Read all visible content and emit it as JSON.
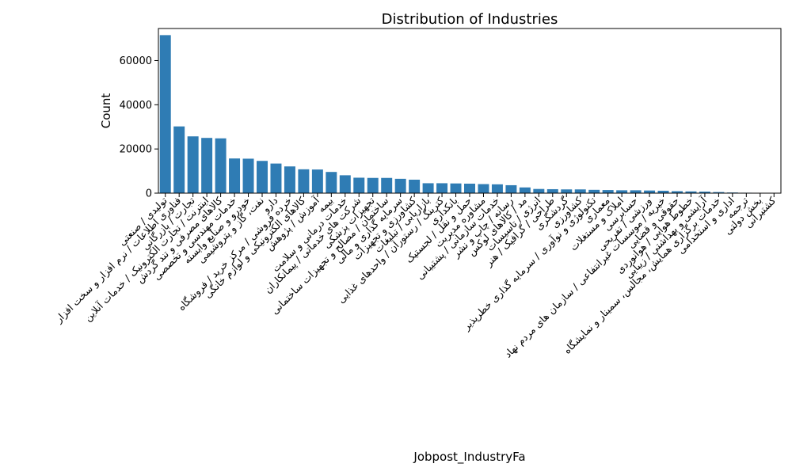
{
  "chart_data": {
    "type": "bar",
    "title": "Distribution of Industries",
    "xlabel": "Jobpost_IndustryFa",
    "ylabel": "Count",
    "ylim": [
      0,
      74500
    ],
    "yticks": [
      0,
      20000,
      40000,
      60000
    ],
    "grid": false,
    "bar_color": "#2f7cb4",
    "categories": [
      "تولیدی / صنعتی",
      "فناوری اطلاعات / نرم افزار و سخت افزار",
      "تجارت / بازرگانی",
      "اینترنت / تجارت الکترونیک / خدمات آنلاین",
      "کالاهای مصرفی و تند گردش",
      "خدمات مهندسی و تخصصی",
      "خودرو و صنایع وابسته",
      "نفت، گاز و پتروشیمی",
      "دارو",
      "خرده فروشی / مرکز خرید / فروشگاه",
      "کالاهای الکترونیکی و لوازم خانگی",
      "آموزش / پژوهش",
      "بیمه",
      "خدمات درمانی و سلامت",
      "شرکت های خدماتی / پیمانکاران",
      "تجهیزات پزشکی",
      "ساختمان / مصالح و تجهیزات ساختمانی",
      "سرمایه گذاری و مالی",
      "کشاورزی و تجهیزات",
      "بازاریابی / تبلیغات",
      "کترینگ / رستوران / واحدهای غذایی",
      "بانکداری",
      "حمل و نقل / لجستیک",
      "مشاوره مدیریت",
      "خدمات سازمانی / پشتیبانی",
      "رسانه / چاپ و نشر",
      "مد / کالاهای لوکس",
      "انرژی / تاسیسات",
      "طراحی / گرافیک / هنر",
      "گردشگری",
      "کشاورزی",
      "تکنولوژی و نوآوری / سرمایه گذاری خطرپذیر",
      "معماری",
      "املاک و مستغلات",
      "حسابرسی",
      "ورزشی / تفریحی",
      "خیریه / موسسات غیرانتفاعی / سازمان های مردم نهاد",
      "حقوقی و قضایی",
      "خطوط هوایی / هوانوردی",
      "آرایشی و بهداشتی / زیبایی",
      "خدمات برگزاری همایش، مجالس، سمینار و نمایشگاه",
      "اداری و استخدامی",
      "ترجمه",
      "بخش دولتی",
      "کشتیرانی"
    ],
    "values": [
      71500,
      30200,
      25700,
      25000,
      24800,
      15700,
      15600,
      14600,
      13400,
      12100,
      10800,
      10700,
      9600,
      8100,
      7000,
      6900,
      6900,
      6500,
      6100,
      4500,
      4500,
      4400,
      4300,
      4100,
      4000,
      3600,
      2600,
      1900,
      1800,
      1700,
      1700,
      1500,
      1400,
      1300,
      1300,
      1200,
      1100,
      900,
      800,
      700,
      500,
      300,
      200,
      150,
      100
    ]
  }
}
